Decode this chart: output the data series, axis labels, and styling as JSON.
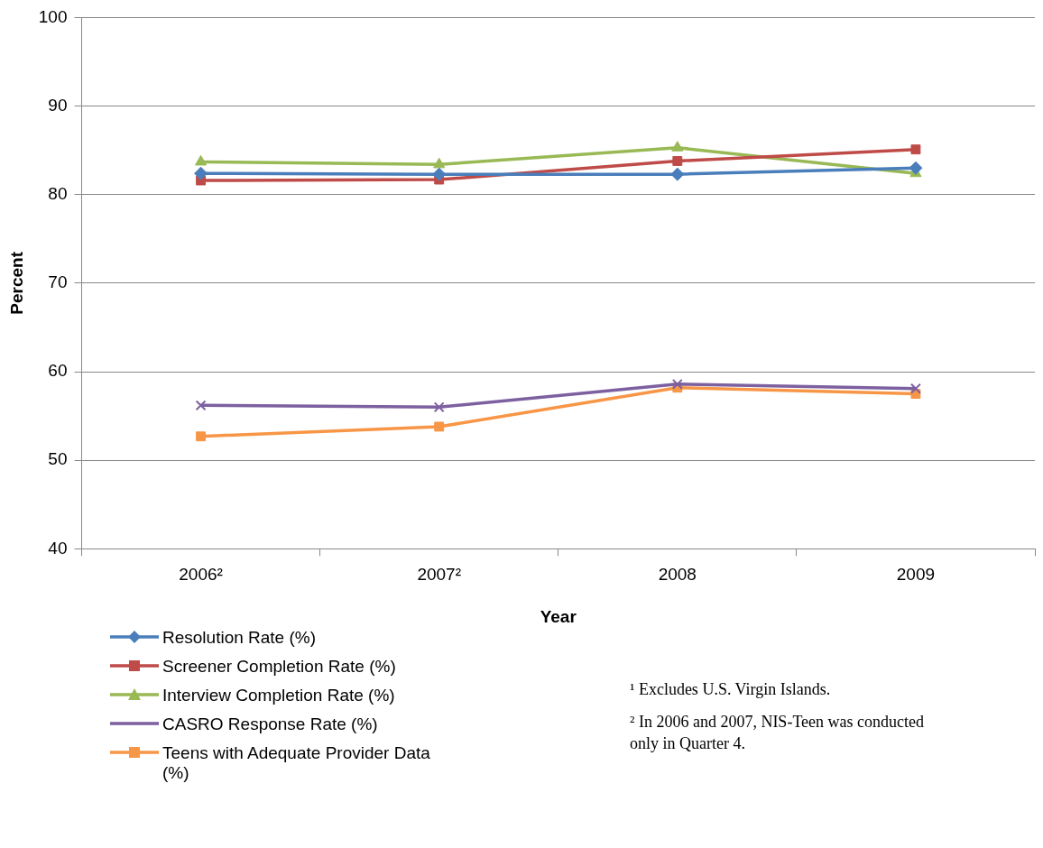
{
  "chart_data": {
    "type": "line",
    "xlabel": "Year",
    "ylabel": "Percent",
    "categories": [
      "2006²",
      "2007²",
      "2008",
      "2009"
    ],
    "series": [
      {
        "name": "Resolution Rate (%)",
        "color": "#4a7ebb",
        "marker": "diamond",
        "values": [
          82.4,
          82.3,
          82.3,
          83.0
        ]
      },
      {
        "name": "Screener Completion Rate (%)",
        "color": "#be4b48",
        "marker": "square",
        "values": [
          81.6,
          81.7,
          83.8,
          85.1
        ]
      },
      {
        "name": "Interview Completion Rate (%)",
        "color": "#98b954",
        "marker": "triangle",
        "values": [
          83.7,
          83.4,
          85.3,
          82.4
        ]
      },
      {
        "name": "CASRO Response Rate (%)",
        "color": "#7d60a0",
        "marker": "cross",
        "values": [
          56.2,
          56.0,
          58.6,
          58.1
        ]
      },
      {
        "name": "Teens with Adequate Provider Data (%)",
        "color": "#f79646",
        "marker": "square",
        "values": [
          52.7,
          53.8,
          58.2,
          57.5
        ]
      }
    ],
    "ylim": [
      40,
      100
    ],
    "yticks": [
      40,
      50,
      60,
      70,
      80,
      90,
      100
    ],
    "grid": "y",
    "legend": "bottom left",
    "annotations": [
      "¹ Excludes U.S. Virgin Islands.",
      "² In 2006 and 2007, NIS-Teen was conducted only in Quarter 4."
    ]
  }
}
